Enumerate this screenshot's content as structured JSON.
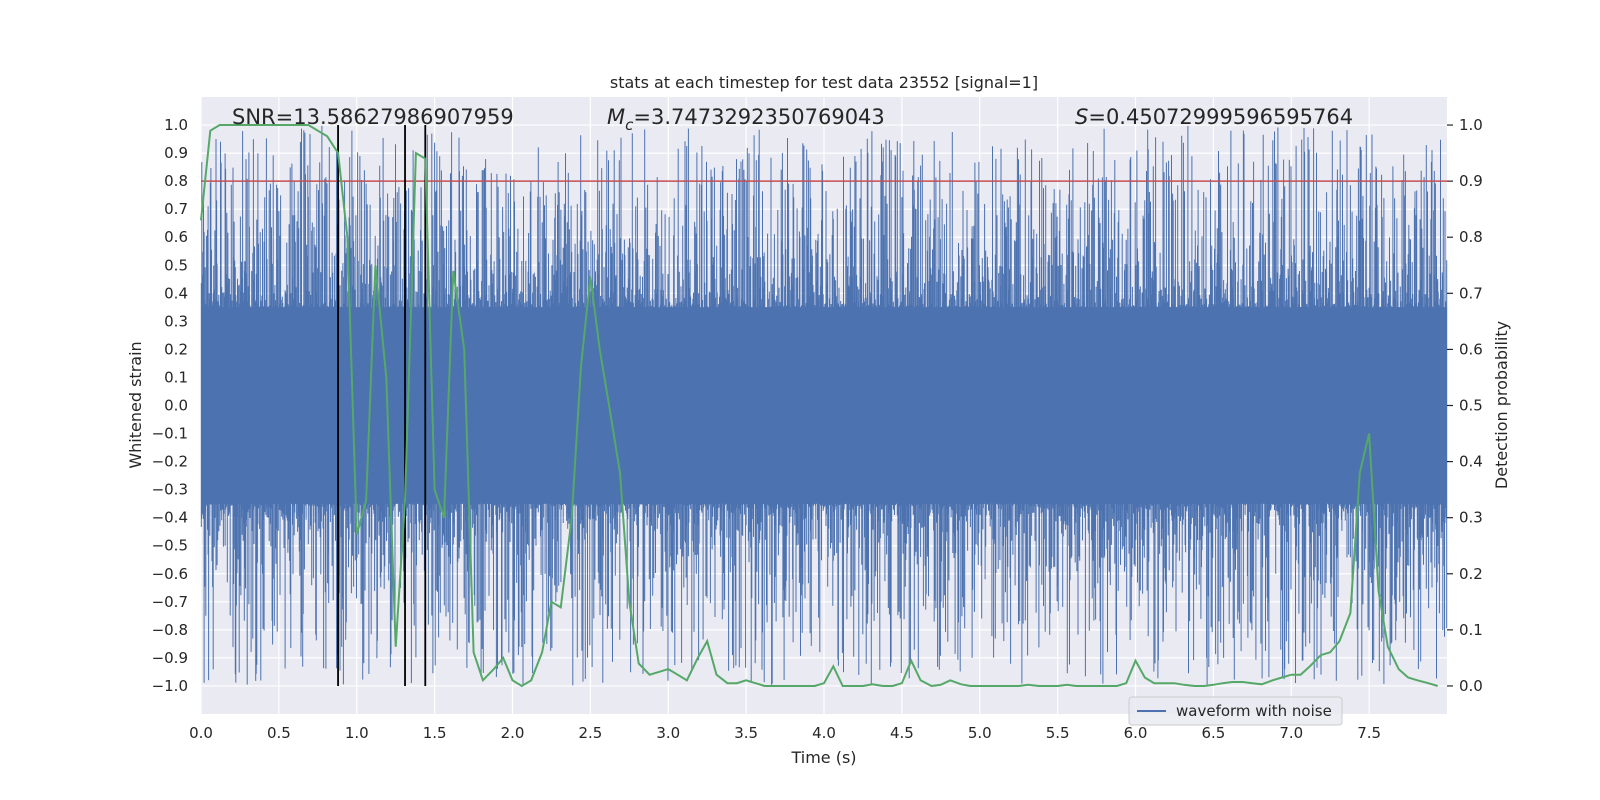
{
  "chart_data": {
    "type": "line",
    "title": "stats at each timestep for test data 23552 [signal=1]",
    "xlabel": "Time (s)",
    "ylabel": "Whitened strain",
    "y2label": "Detection probability",
    "xlim": [
      0.0,
      8.0
    ],
    "ylim": [
      -1.1,
      1.1
    ],
    "y2lim": [
      -0.05,
      1.05
    ],
    "xticks": [
      0.0,
      0.5,
      1.0,
      1.5,
      2.0,
      2.5,
      3.0,
      3.5,
      4.0,
      4.5,
      5.0,
      5.5,
      6.0,
      6.5,
      7.0,
      7.5
    ],
    "xtick_labels": [
      "0.0",
      "0.5",
      "1.0",
      "1.5",
      "2.0",
      "2.5",
      "3.0",
      "3.5",
      "4.0",
      "4.5",
      "5.0",
      "5.5",
      "6.0",
      "6.5",
      "7.0",
      "7.5"
    ],
    "yticks": [
      1.0,
      0.9,
      0.8,
      0.7,
      0.6,
      0.5,
      0.4,
      0.3,
      0.2,
      0.1,
      0.0,
      -0.1,
      -0.2,
      -0.3,
      -0.4,
      -0.5,
      -0.6,
      -0.7,
      -0.8,
      -0.9,
      -1.0
    ],
    "ytick_labels": [
      "1.0",
      "0.9",
      "0.8",
      "0.7",
      "0.6",
      "0.5",
      "0.4",
      "0.3",
      "0.2",
      "0.1",
      "0.0",
      "−0.1",
      "−0.2",
      "−0.3",
      "−0.4",
      "−0.5",
      "−0.6",
      "−0.7",
      "−0.8",
      "−0.9",
      "−1.0"
    ],
    "y2ticks": [
      1.0,
      0.9,
      0.8,
      0.7,
      0.6,
      0.5,
      0.4,
      0.3,
      0.2,
      0.1,
      0.0
    ],
    "y2tick_labels": [
      "1.0",
      "0.9",
      "0.8",
      "0.7",
      "0.6",
      "0.5",
      "0.4",
      "0.3",
      "0.2",
      "0.1",
      "0.0"
    ],
    "grid": true,
    "legend": {
      "placement": "lower-right",
      "entries": [
        {
          "label": "waveform with noise",
          "color": "#4c72b0"
        }
      ]
    },
    "annotations": {
      "snr": "SNR=13.58627986907959",
      "mc_symbol": "M",
      "mc_sub": "c",
      "mc_value": "=3.7473292350769043",
      "s_symbol": "S",
      "s_value": "=0.45072999596595764"
    },
    "threshold_line": {
      "axis": "y2",
      "value": 0.9,
      "color": "#c44e52"
    },
    "vertical_lines": {
      "x": [
        0.88,
        1.31,
        1.44
      ],
      "color": "#000000"
    },
    "waveform_envelope": {
      "name": "waveform with noise",
      "color": "#4c72b0",
      "approx_peak_upper": 1.0,
      "approx_peak_lower": -1.0,
      "typical_band": [
        -0.35,
        0.35
      ]
    },
    "probability_series": {
      "color": "#55a868",
      "x": [
        0.0,
        0.06,
        0.12,
        0.19,
        0.25,
        0.31,
        0.38,
        0.44,
        0.5,
        0.56,
        0.62,
        0.69,
        0.75,
        0.81,
        0.88,
        0.94,
        1.0,
        1.06,
        1.12,
        1.19,
        1.25,
        1.31,
        1.38,
        1.44,
        1.5,
        1.56,
        1.62,
        1.69,
        1.75,
        1.81,
        1.88,
        1.94,
        2.0,
        2.06,
        2.12,
        2.19,
        2.25,
        2.31,
        2.38,
        2.44,
        2.5,
        2.56,
        2.62,
        2.69,
        2.75,
        2.81,
        2.88,
        2.94,
        3.0,
        3.06,
        3.12,
        3.19,
        3.25,
        3.31,
        3.38,
        3.44,
        3.5,
        3.56,
        3.62,
        3.69,
        3.75,
        3.81,
        3.88,
        3.94,
        4.0,
        4.06,
        4.12,
        4.19,
        4.25,
        4.31,
        4.38,
        4.44,
        4.5,
        4.56,
        4.62,
        4.69,
        4.75,
        4.81,
        4.88,
        4.94,
        5.0,
        5.06,
        5.12,
        5.19,
        5.25,
        5.31,
        5.38,
        5.44,
        5.5,
        5.56,
        5.62,
        5.69,
        5.75,
        5.81,
        5.88,
        5.94,
        6.0,
        6.06,
        6.12,
        6.19,
        6.25,
        6.31,
        6.38,
        6.44,
        6.5,
        6.56,
        6.62,
        6.69,
        6.75,
        6.81,
        6.88,
        6.94,
        7.0,
        7.06,
        7.12,
        7.19,
        7.25,
        7.31,
        7.38,
        7.44,
        7.5,
        7.56,
        7.62,
        7.69,
        7.75,
        7.81,
        7.88,
        7.94
      ],
      "y": [
        0.83,
        0.99,
        1.0,
        1.0,
        1.0,
        1.0,
        1.0,
        1.0,
        1.0,
        1.0,
        1.0,
        1.0,
        0.99,
        0.98,
        0.95,
        0.8,
        0.27,
        0.33,
        0.75,
        0.55,
        0.07,
        0.33,
        0.95,
        0.94,
        0.35,
        0.3,
        0.74,
        0.6,
        0.06,
        0.01,
        0.03,
        0.05,
        0.01,
        0.0,
        0.01,
        0.06,
        0.15,
        0.14,
        0.3,
        0.57,
        0.73,
        0.6,
        0.5,
        0.38,
        0.15,
        0.04,
        0.02,
        0.025,
        0.03,
        0.02,
        0.01,
        0.05,
        0.08,
        0.02,
        0.005,
        0.005,
        0.01,
        0.005,
        0.0,
        0.0,
        0.0,
        0.0,
        0.0,
        0.0,
        0.005,
        0.035,
        0.0,
        0.0,
        0.0,
        0.003,
        0.0,
        0.0,
        0.005,
        0.045,
        0.01,
        0.0,
        0.002,
        0.01,
        0.003,
        0.0,
        0.0,
        0.0,
        0.0,
        0.0,
        0.0,
        0.002,
        0.0,
        0.0,
        0.0,
        0.002,
        0.0,
        0.0,
        0.0,
        0.0,
        0.0,
        0.005,
        0.045,
        0.015,
        0.005,
        0.005,
        0.005,
        0.002,
        0.0,
        0.0,
        0.002,
        0.005,
        0.007,
        0.007,
        0.005,
        0.003,
        0.01,
        0.015,
        0.02,
        0.02,
        0.035,
        0.055,
        0.06,
        0.08,
        0.13,
        0.38,
        0.45,
        0.17,
        0.07,
        0.03,
        0.015,
        0.01,
        0.005,
        0.0
      ]
    }
  }
}
